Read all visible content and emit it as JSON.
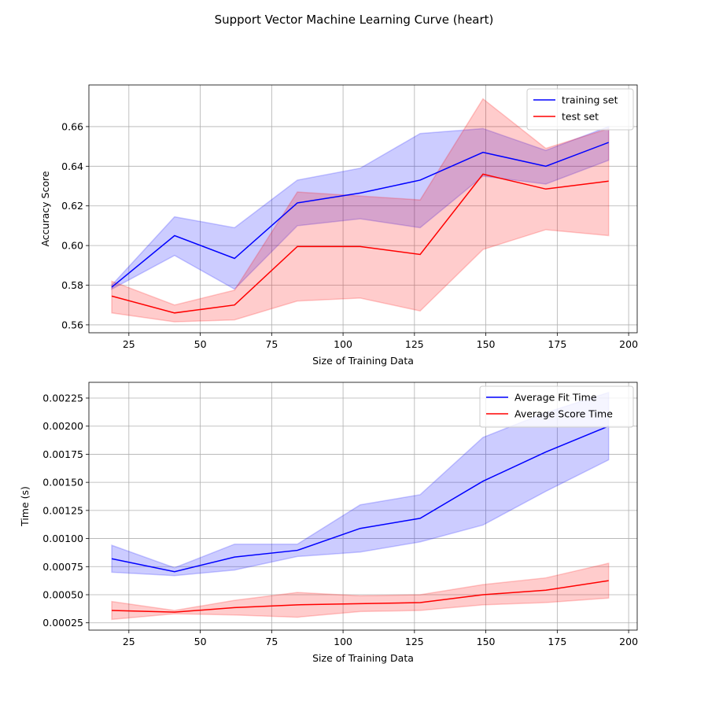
{
  "figure": {
    "title": "Support Vector Machine Learning Curve (heart)"
  },
  "chart_data": [
    {
      "type": "line",
      "xlabel": "Size of Training Data",
      "ylabel": "Accuracy Score",
      "xlim": [
        11,
        203
      ],
      "ylim": [
        0.556,
        0.681
      ],
      "xticks": [
        25,
        50,
        75,
        100,
        125,
        150,
        175,
        200
      ],
      "yticks": [
        0.56,
        0.58,
        0.6,
        0.62,
        0.64,
        0.66
      ],
      "ytick_labels": [
        "0.56",
        "0.58",
        "0.60",
        "0.62",
        "0.64",
        "0.66"
      ],
      "grid": true,
      "legend_position": "top-right",
      "x": [
        19,
        41,
        62,
        84,
        106,
        127,
        149,
        171,
        193
      ],
      "series": [
        {
          "name": "training set",
          "color": "#0000ff",
          "values": [
            0.579,
            0.605,
            0.5935,
            0.6215,
            0.6265,
            0.633,
            0.647,
            0.64,
            0.652
          ],
          "lower": [
            0.578,
            0.595,
            0.578,
            0.61,
            0.6135,
            0.609,
            0.635,
            0.631,
            0.643
          ],
          "upper": [
            0.58,
            0.6145,
            0.609,
            0.633,
            0.639,
            0.6565,
            0.659,
            0.648,
            0.66
          ]
        },
        {
          "name": "test set",
          "color": "#ff0000",
          "values": [
            0.5745,
            0.566,
            0.57,
            0.5995,
            0.5995,
            0.5955,
            0.636,
            0.6285,
            0.6325
          ],
          "lower": [
            0.566,
            0.5615,
            0.5625,
            0.572,
            0.5735,
            0.567,
            0.598,
            0.608,
            0.605
          ],
          "upper": [
            0.582,
            0.57,
            0.5775,
            0.627,
            0.625,
            0.623,
            0.674,
            0.649,
            0.659
          ]
        }
      ]
    },
    {
      "type": "line",
      "xlabel": "Size of Training Data",
      "ylabel": "Time (s)",
      "xlim": [
        11,
        203
      ],
      "ylim": [
        0.000185,
        0.00239
      ],
      "xticks": [
        25,
        50,
        75,
        100,
        125,
        150,
        175,
        200
      ],
      "yticks": [
        0.00025,
        0.0005,
        0.00075,
        0.001,
        0.00125,
        0.0015,
        0.00175,
        0.002,
        0.00225
      ],
      "ytick_labels": [
        "0.00025",
        "0.00050",
        "0.00075",
        "0.00100",
        "0.00125",
        "0.00150",
        "0.00175",
        "0.00200",
        "0.00225"
      ],
      "grid": true,
      "legend_position": "top-right",
      "x": [
        19,
        41,
        62,
        84,
        106,
        127,
        149,
        171,
        193
      ],
      "series": [
        {
          "name": "Average Fit Time",
          "color": "#0000ff",
          "values": [
            0.00082,
            0.000705,
            0.000835,
            0.000895,
            0.00109,
            0.00118,
            0.00151,
            0.00177,
            0.002
          ],
          "lower": [
            0.0007,
            0.00067,
            0.00072,
            0.00084,
            0.00088,
            0.00097,
            0.00112,
            0.00142,
            0.0017
          ],
          "upper": [
            0.00094,
            0.00074,
            0.00095,
            0.00095,
            0.0013,
            0.00139,
            0.0019,
            0.00212,
            0.0023
          ]
        },
        {
          "name": "Average Score Time",
          "color": "#ff0000",
          "values": [
            0.00036,
            0.000345,
            0.000385,
            0.00041,
            0.00042,
            0.00043,
            0.0005,
            0.00054,
            0.000625
          ],
          "lower": [
            0.00028,
            0.00033,
            0.00032,
            0.0003,
            0.00035,
            0.00036,
            0.00041,
            0.00043,
            0.00047
          ],
          "upper": [
            0.00044,
            0.00036,
            0.00045,
            0.00052,
            0.00049,
            0.0005,
            0.00059,
            0.00065,
            0.00078
          ]
        }
      ]
    }
  ]
}
